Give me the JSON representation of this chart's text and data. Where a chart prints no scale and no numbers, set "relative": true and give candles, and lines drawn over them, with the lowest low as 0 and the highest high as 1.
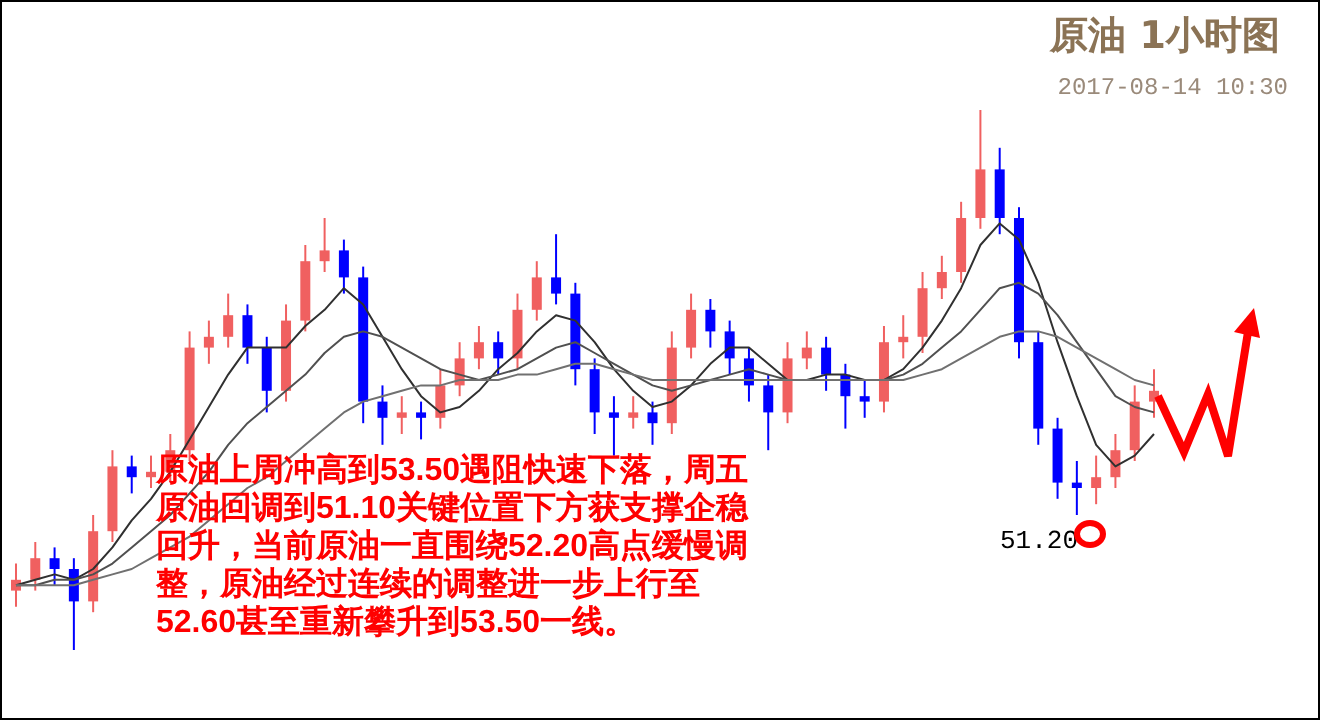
{
  "chart_data": {
    "type": "candlestick",
    "title": "原油 1小时图",
    "subtitle": "2017-08-14 10:30",
    "relative": true,
    "categories": [
      null,
      null,
      null,
      null,
      null,
      null,
      null,
      null,
      null,
      null,
      null,
      null,
      null,
      null,
      null,
      null,
      null,
      null,
      null,
      null,
      null,
      null,
      null,
      null,
      null,
      null,
      null,
      null,
      null,
      null,
      null,
      null,
      null,
      null,
      null,
      null,
      null,
      null,
      null,
      null,
      null,
      null,
      null,
      null,
      null,
      null,
      null,
      null,
      null,
      null,
      null,
      null,
      null,
      null,
      null,
      null,
      null,
      null,
      null,
      null
    ],
    "ohlc": [
      [
        0.11,
        0.16,
        0.08,
        0.13
      ],
      [
        0.13,
        0.2,
        0.11,
        0.17
      ],
      [
        0.17,
        0.19,
        0.12,
        0.15
      ],
      [
        0.15,
        0.17,
        0.0,
        0.09
      ],
      [
        0.09,
        0.25,
        0.07,
        0.22
      ],
      [
        0.22,
        0.37,
        0.2,
        0.34
      ],
      [
        0.34,
        0.36,
        0.29,
        0.32
      ],
      [
        0.32,
        0.36,
        0.3,
        0.33
      ],
      [
        0.33,
        0.4,
        0.31,
        0.37
      ],
      [
        0.37,
        0.59,
        0.35,
        0.56
      ],
      [
        0.56,
        0.61,
        0.53,
        0.58
      ],
      [
        0.58,
        0.66,
        0.56,
        0.62
      ],
      [
        0.62,
        0.64,
        0.53,
        0.56
      ],
      [
        0.56,
        0.58,
        0.44,
        0.48
      ],
      [
        0.48,
        0.64,
        0.46,
        0.61
      ],
      [
        0.61,
        0.75,
        0.59,
        0.72
      ],
      [
        0.72,
        0.8,
        0.7,
        0.74
      ],
      [
        0.74,
        0.76,
        0.66,
        0.69
      ],
      [
        0.69,
        0.71,
        0.42,
        0.46
      ],
      [
        0.46,
        0.49,
        0.38,
        0.43
      ],
      [
        0.43,
        0.47,
        0.4,
        0.44
      ],
      [
        0.44,
        0.46,
        0.39,
        0.43
      ],
      [
        0.43,
        0.52,
        0.41,
        0.49
      ],
      [
        0.49,
        0.57,
        0.47,
        0.54
      ],
      [
        0.54,
        0.6,
        0.52,
        0.57
      ],
      [
        0.57,
        0.59,
        0.51,
        0.54
      ],
      [
        0.54,
        0.66,
        0.52,
        0.63
      ],
      [
        0.63,
        0.72,
        0.61,
        0.69
      ],
      [
        0.69,
        0.77,
        0.64,
        0.66
      ],
      [
        0.66,
        0.68,
        0.49,
        0.52
      ],
      [
        0.52,
        0.54,
        0.4,
        0.44
      ],
      [
        0.44,
        0.47,
        0.36,
        0.43
      ],
      [
        0.43,
        0.47,
        0.41,
        0.44
      ],
      [
        0.44,
        0.46,
        0.38,
        0.42
      ],
      [
        0.42,
        0.59,
        0.4,
        0.56
      ],
      [
        0.56,
        0.66,
        0.54,
        0.63
      ],
      [
        0.63,
        0.65,
        0.56,
        0.59
      ],
      [
        0.59,
        0.61,
        0.51,
        0.54
      ],
      [
        0.54,
        0.56,
        0.46,
        0.49
      ],
      [
        0.49,
        0.51,
        0.37,
        0.44
      ],
      [
        0.44,
        0.57,
        0.42,
        0.54
      ],
      [
        0.54,
        0.59,
        0.52,
        0.56
      ],
      [
        0.56,
        0.58,
        0.48,
        0.51
      ],
      [
        0.51,
        0.53,
        0.41,
        0.47
      ],
      [
        0.47,
        0.5,
        0.43,
        0.46
      ],
      [
        0.46,
        0.6,
        0.44,
        0.57
      ],
      [
        0.57,
        0.62,
        0.54,
        0.58
      ],
      [
        0.58,
        0.7,
        0.55,
        0.67
      ],
      [
        0.67,
        0.73,
        0.65,
        0.7
      ],
      [
        0.7,
        0.83,
        0.68,
        0.8
      ],
      [
        0.8,
        1.0,
        0.78,
        0.89
      ],
      [
        0.89,
        0.93,
        0.77,
        0.8
      ],
      [
        0.8,
        0.82,
        0.54,
        0.57
      ],
      [
        0.57,
        0.59,
        0.38,
        0.41
      ],
      [
        0.41,
        0.43,
        0.28,
        0.31
      ],
      [
        0.31,
        0.35,
        0.25,
        0.3
      ],
      [
        0.3,
        0.36,
        0.27,
        0.32
      ],
      [
        0.32,
        0.4,
        0.3,
        0.37
      ],
      [
        0.37,
        0.49,
        0.35,
        0.46
      ],
      [
        0.46,
        0.52,
        0.43,
        0.48
      ]
    ],
    "colors": [
      "#f06060",
      "#f06060",
      "#0000ff",
      "#0000ff",
      "#f06060",
      "#f06060",
      "#0000ff",
      "#f06060",
      "#f06060",
      "#f06060",
      "#f06060",
      "#f06060",
      "#0000ff",
      "#0000ff",
      "#f06060",
      "#f06060",
      "#f06060",
      "#0000ff",
      "#0000ff",
      "#0000ff",
      "#f06060",
      "#0000ff",
      "#f06060",
      "#f06060",
      "#f06060",
      "#0000ff",
      "#f06060",
      "#f06060",
      "#0000ff",
      "#0000ff",
      "#0000ff",
      "#0000ff",
      "#f06060",
      "#0000ff",
      "#f06060",
      "#f06060",
      "#0000ff",
      "#0000ff",
      "#0000ff",
      "#0000ff",
      "#f06060",
      "#f06060",
      "#0000ff",
      "#0000ff",
      "#0000ff",
      "#f06060",
      "#f06060",
      "#f06060",
      "#f06060",
      "#f06060",
      "#f06060",
      "#0000ff",
      "#0000ff",
      "#0000ff",
      "#0000ff",
      "#0000ff",
      "#f06060",
      "#f06060",
      "#f06060",
      "#f06060"
    ],
    "series": [
      {
        "type": "line",
        "color": "#303030",
        "values": [
          0.12,
          0.13,
          0.14,
          0.13,
          0.15,
          0.19,
          0.24,
          0.28,
          0.33,
          0.39,
          0.45,
          0.51,
          0.56,
          0.56,
          0.56,
          0.6,
          0.63,
          0.67,
          0.64,
          0.58,
          0.52,
          0.47,
          0.44,
          0.45,
          0.48,
          0.52,
          0.55,
          0.59,
          0.62,
          0.61,
          0.57,
          0.52,
          0.48,
          0.45,
          0.46,
          0.49,
          0.53,
          0.56,
          0.56,
          0.53,
          0.5,
          0.5,
          0.51,
          0.51,
          0.5,
          0.5,
          0.52,
          0.56,
          0.61,
          0.67,
          0.75,
          0.79,
          0.76,
          0.68,
          0.57,
          0.47,
          0.38,
          0.34,
          0.36,
          0.4
        ]
      },
      {
        "type": "line",
        "color": "#505050",
        "values": [
          0.12,
          0.12,
          0.13,
          0.13,
          0.14,
          0.16,
          0.19,
          0.22,
          0.25,
          0.29,
          0.33,
          0.38,
          0.42,
          0.45,
          0.48,
          0.51,
          0.55,
          0.58,
          0.59,
          0.58,
          0.56,
          0.54,
          0.52,
          0.51,
          0.5,
          0.51,
          0.52,
          0.54,
          0.56,
          0.57,
          0.55,
          0.53,
          0.51,
          0.49,
          0.48,
          0.49,
          0.5,
          0.51,
          0.52,
          0.51,
          0.5,
          0.5,
          0.5,
          0.5,
          0.5,
          0.5,
          0.51,
          0.53,
          0.56,
          0.59,
          0.63,
          0.67,
          0.68,
          0.66,
          0.62,
          0.57,
          0.52,
          0.47,
          0.45,
          0.44
        ]
      },
      {
        "type": "line",
        "color": "#707070",
        "values": [
          0.12,
          0.12,
          0.12,
          0.12,
          0.13,
          0.14,
          0.15,
          0.17,
          0.19,
          0.21,
          0.24,
          0.27,
          0.3,
          0.32,
          0.35,
          0.38,
          0.41,
          0.44,
          0.46,
          0.47,
          0.48,
          0.49,
          0.49,
          0.5,
          0.5,
          0.5,
          0.51,
          0.51,
          0.52,
          0.53,
          0.53,
          0.52,
          0.51,
          0.5,
          0.5,
          0.5,
          0.5,
          0.5,
          0.5,
          0.5,
          0.5,
          0.5,
          0.5,
          0.5,
          0.5,
          0.5,
          0.5,
          0.51,
          0.52,
          0.54,
          0.56,
          0.58,
          0.59,
          0.59,
          0.58,
          0.56,
          0.54,
          0.52,
          0.5,
          0.49
        ]
      }
    ],
    "annotations": [
      "原油上周冲高到53.50遇阻快速下落，周五原油回调到51.10关键位置下方获支撑企稳回升，当前原油一直围绕52.20高点缓慢调整，原油经过连续的调整进一步上行至52.60甚至重新攀升到53.50一线。",
      "51.20"
    ]
  }
}
